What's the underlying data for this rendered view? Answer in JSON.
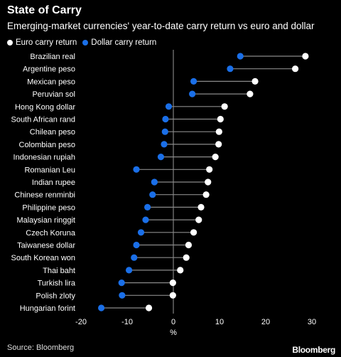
{
  "title": "State of Carry",
  "subtitle": "Emerging-market currencies' year-to-date carry return vs euro and dollar",
  "source": "Source: Bloomberg",
  "brand": "Bloomberg",
  "colors": {
    "euro": "#ffffff",
    "dollar": "#1a6fe8",
    "connector": "#8a8a8a",
    "zero_line": "#9a9a9a"
  },
  "chart_data": {
    "type": "dumbbell",
    "title": "State of Carry",
    "subtitle": "Emerging-market currencies' year-to-date carry return vs euro and dollar",
    "xlabel": "%",
    "xlim": [
      -20,
      30
    ],
    "xticks": [
      -20,
      -10,
      0,
      10,
      20,
      30
    ],
    "grid": false,
    "legend": "top-left",
    "series": [
      {
        "name": "Euro carry return",
        "color": "#ffffff"
      },
      {
        "name": "Dollar carry return",
        "color": "#1a6fe8"
      }
    ],
    "categories": [
      "Brazilian real",
      "Argentine peso",
      "Mexican peso",
      "Peruvian sol",
      "Hong Kong dollar",
      "South African rand",
      "Chilean peso",
      "Colombian peso",
      "Indonesian rupiah",
      "Romanian Leu",
      "Indian rupee",
      "Chinese renminbi",
      "Philippine peso",
      "Malaysian ringgit",
      "Czech Koruna",
      "Taiwanese dollar",
      "South Korean won",
      "Thai baht",
      "Turkish lira",
      "Polish zloty",
      "Hungarian forint"
    ],
    "euro": [
      28.6,
      26.4,
      17.7,
      16.6,
      11.1,
      10.2,
      9.9,
      9.8,
      9.1,
      7.8,
      7.5,
      7.1,
      6.0,
      5.5,
      4.4,
      3.3,
      2.8,
      1.5,
      -0.1,
      -0.1,
      -5.3
    ],
    "dollar": [
      14.5,
      12.3,
      4.4,
      4.1,
      -1.0,
      -1.7,
      -1.8,
      -2.0,
      -2.7,
      -8.0,
      -4.1,
      -4.5,
      -5.6,
      -6.0,
      -7.0,
      -8.0,
      -8.5,
      -9.6,
      -11.2,
      -11.1,
      -15.6
    ]
  }
}
